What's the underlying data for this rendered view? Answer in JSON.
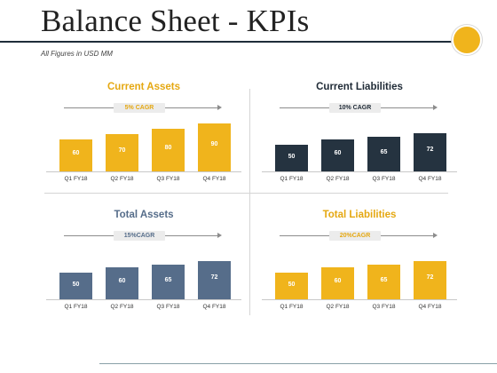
{
  "page": {
    "title": "Balance Sheet - KPIs",
    "subtitle": "All Figures in USD MM"
  },
  "colors": {
    "gold": "#f0b41c",
    "navy": "#253340",
    "slate": "#566d8a",
    "title_rule": "#1f2d3a"
  },
  "chart_data": [
    {
      "type": "bar",
      "title": "Current Assets",
      "annotation": "5% CAGR",
      "categories": [
        "Q1 FY18",
        "Q2 FY18",
        "Q3 FY18",
        "Q4 FY18"
      ],
      "values": [
        60,
        70,
        80,
        90
      ],
      "color": "#f0b41c",
      "title_color": "#e5a812",
      "badge_color": "#e5a812",
      "ylim": [
        0,
        100
      ],
      "grid": false
    },
    {
      "type": "bar",
      "title": "Current Liabilities",
      "annotation": "10% CAGR",
      "categories": [
        "Q1 FY18",
        "Q2 FY18",
        "Q3 FY18",
        "Q4 FY18"
      ],
      "values": [
        50,
        60,
        65,
        72
      ],
      "color": "#253340",
      "title_color": "#1f2a36",
      "badge_color": "#1f2a36",
      "ylim": [
        0,
        100
      ],
      "grid": false
    },
    {
      "type": "bar",
      "title": "Total Assets",
      "annotation": "15%CAGR",
      "categories": [
        "Q1 FY18",
        "Q2 FY18",
        "Q3 FY18",
        "Q4 FY18"
      ],
      "values": [
        50,
        60,
        65,
        72
      ],
      "color": "#566d8a",
      "title_color": "#566d8a",
      "badge_color": "#566d8a",
      "ylim": [
        0,
        100
      ],
      "grid": false
    },
    {
      "type": "bar",
      "title": "Total Liabilities",
      "annotation": "20%CAGR",
      "categories": [
        "Q1 FY18",
        "Q2 FY18",
        "Q3 FY18",
        "Q4 FY18"
      ],
      "values": [
        50,
        60,
        65,
        72
      ],
      "color": "#f0b41c",
      "title_color": "#e5a812",
      "badge_color": "#e5a812",
      "ylim": [
        0,
        100
      ],
      "grid": false
    }
  ]
}
